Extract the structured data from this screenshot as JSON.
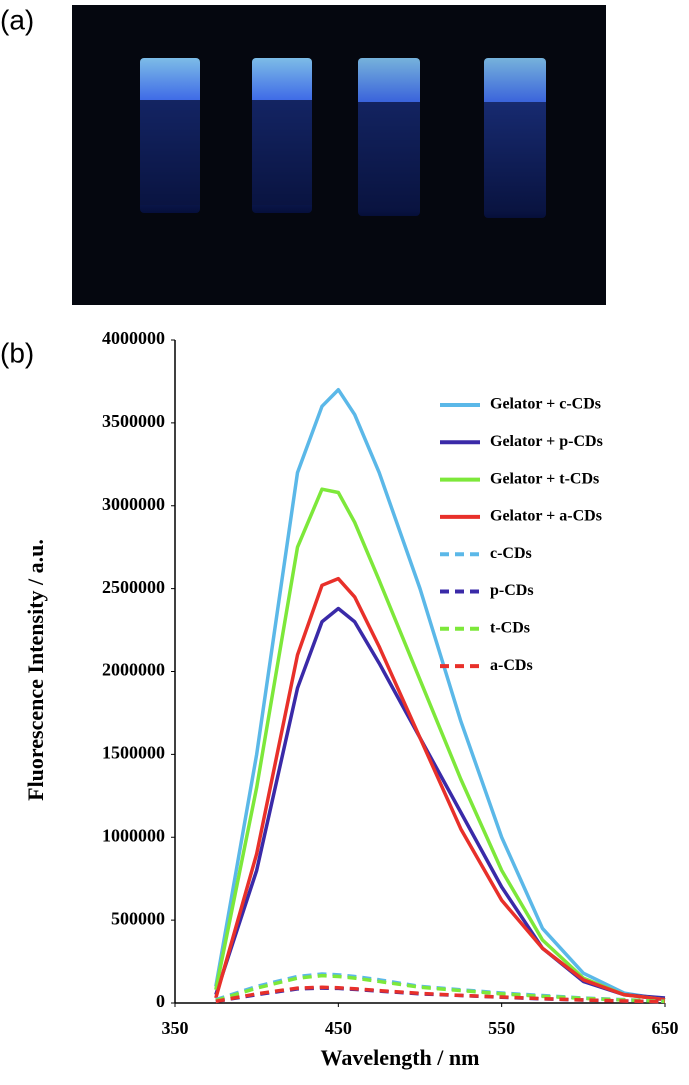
{
  "panels": {
    "a": "(a)",
    "b": "(b)"
  },
  "chart_data": {
    "type": "line",
    "xlabel": "Wavelength / nm",
    "ylabel": "Fluorescence Intensity / a.u.",
    "x": [
      375,
      400,
      425,
      440,
      450,
      460,
      475,
      500,
      525,
      550,
      575,
      600,
      625,
      650
    ],
    "series": [
      {
        "name": "Gelator + c-CDs",
        "color": "#5bb8e8",
        "dashed": false,
        "values": [
          100000,
          1500000,
          3200000,
          3600000,
          3700000,
          3550000,
          3200000,
          2500000,
          1700000,
          1000000,
          450000,
          180000,
          60000,
          20000
        ]
      },
      {
        "name": "Gelator + p-CDs",
        "color": "#3a2aa8",
        "dashed": false,
        "values": [
          50000,
          800000,
          1900000,
          2300000,
          2380000,
          2300000,
          2050000,
          1600000,
          1150000,
          700000,
          330000,
          130000,
          50000,
          30000
        ]
      },
      {
        "name": "Gelator + t-CDs",
        "color": "#7de83a",
        "dashed": false,
        "values": [
          80000,
          1300000,
          2750000,
          3100000,
          3080000,
          2900000,
          2550000,
          1950000,
          1350000,
          800000,
          380000,
          150000,
          50000,
          20000
        ]
      },
      {
        "name": "Gelator + a-CDs",
        "color": "#e8302a",
        "dashed": false,
        "values": [
          30000,
          900000,
          2100000,
          2520000,
          2560000,
          2450000,
          2150000,
          1600000,
          1050000,
          620000,
          330000,
          140000,
          50000,
          20000
        ]
      },
      {
        "name": "c-CDs",
        "color": "#5bb8e8",
        "dashed": true,
        "values": [
          20000,
          100000,
          160000,
          175000,
          170000,
          160000,
          140000,
          100000,
          80000,
          60000,
          45000,
          30000,
          20000,
          10000
        ]
      },
      {
        "name": "p-CDs",
        "color": "#3a2aa8",
        "dashed": true,
        "values": [
          10000,
          50000,
          85000,
          90000,
          88000,
          82000,
          72000,
          55000,
          45000,
          35000,
          25000,
          18000,
          12000,
          8000
        ]
      },
      {
        "name": "t-CDs",
        "color": "#7de83a",
        "dashed": true,
        "values": [
          15000,
          90000,
          150000,
          165000,
          160000,
          150000,
          130000,
          95000,
          75000,
          55000,
          40000,
          28000,
          18000,
          10000
        ]
      },
      {
        "name": "a-CDs",
        "color": "#e8302a",
        "dashed": true,
        "values": [
          10000,
          55000,
          90000,
          95000,
          92000,
          86000,
          75000,
          58000,
          46000,
          36000,
          26000,
          18000,
          12000,
          8000
        ]
      }
    ],
    "xlim": [
      350,
      650
    ],
    "xticks": [
      350,
      450,
      550,
      650
    ],
    "ylim": [
      0,
      4000000
    ],
    "yticks": [
      0,
      500000,
      1000000,
      1500000,
      2000000,
      2500000,
      3000000,
      3500000,
      4000000
    ],
    "grid": false,
    "legend": "upper right"
  }
}
